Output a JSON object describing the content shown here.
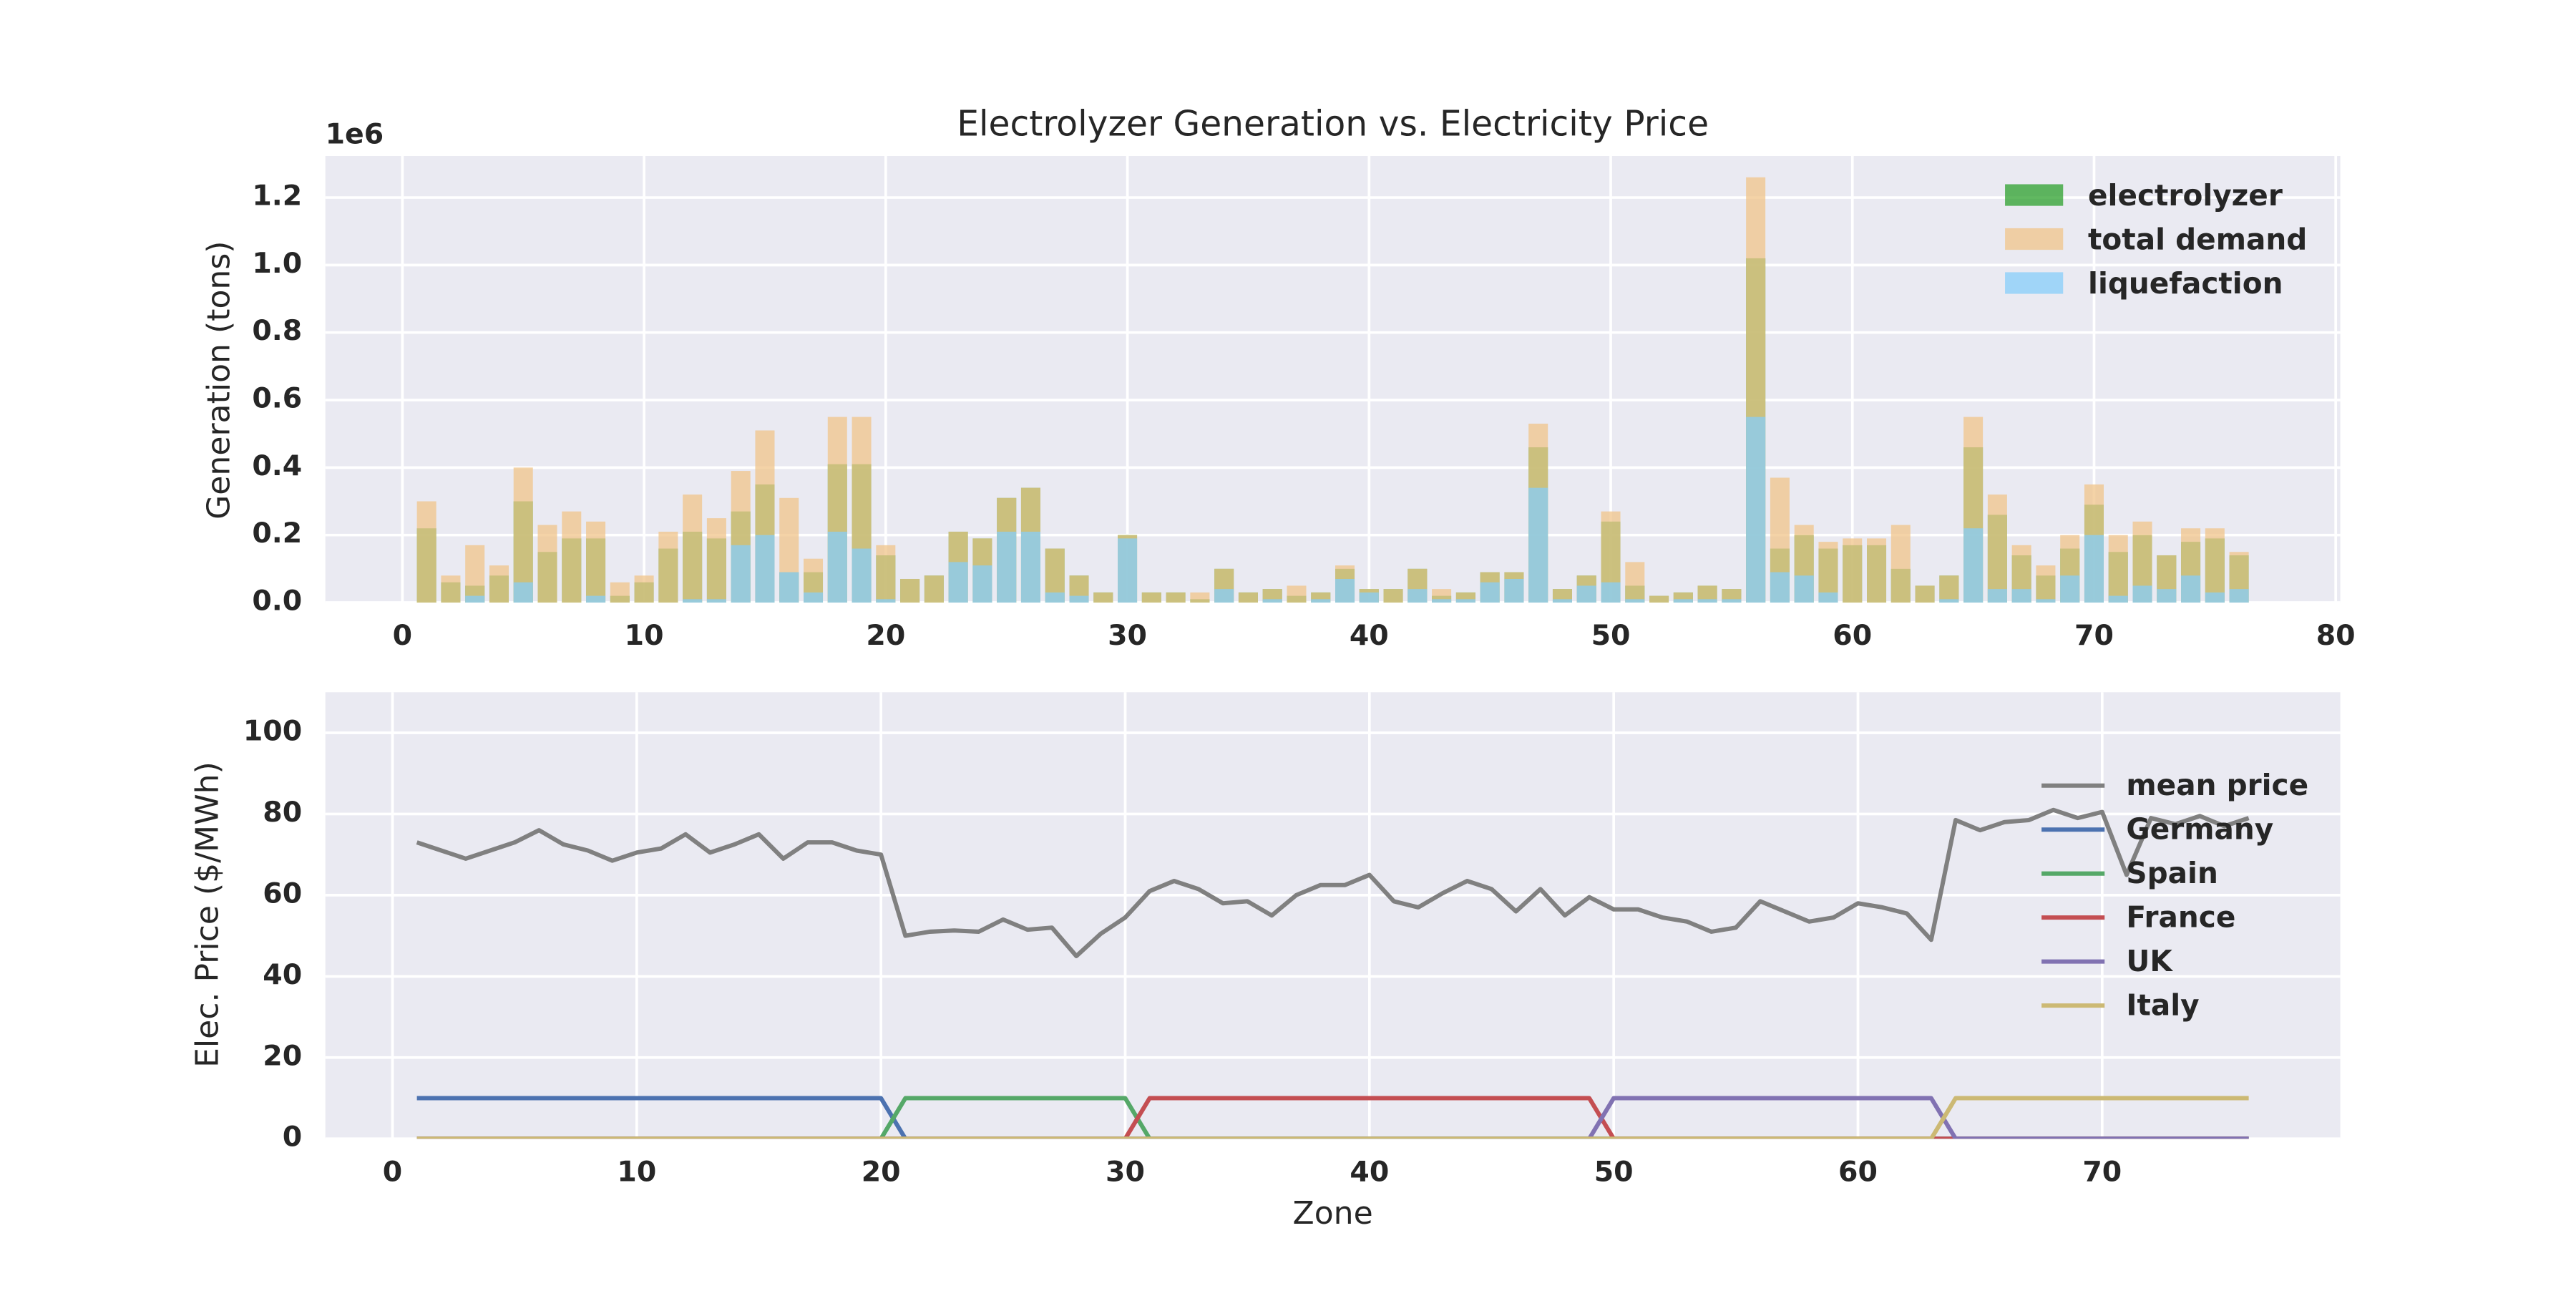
{
  "chart_data": [
    {
      "type": "bar",
      "title": "Electrolyzer Generation vs. Electricity Price",
      "ylabel": "Generation (tons)",
      "y_offset_label": "1e6",
      "x": [
        1,
        2,
        3,
        4,
        5,
        6,
        7,
        8,
        9,
        10,
        11,
        12,
        13,
        14,
        15,
        16,
        17,
        18,
        19,
        20,
        21,
        22,
        23,
        24,
        25,
        26,
        27,
        28,
        29,
        30,
        31,
        32,
        33,
        34,
        35,
        36,
        37,
        38,
        39,
        40,
        41,
        42,
        43,
        44,
        45,
        46,
        47,
        48,
        49,
        50,
        51,
        52,
        53,
        54,
        55,
        56,
        57,
        58,
        59,
        60,
        61,
        62,
        63,
        64,
        65,
        66,
        67,
        68,
        69,
        70,
        71,
        72,
        73,
        74,
        75,
        76
      ],
      "series": [
        {
          "name": "electrolyzer",
          "color": "#2ca02c",
          "values": [
            220000,
            60000,
            50000,
            80000,
            300000,
            150000,
            190000,
            190000,
            20000,
            60000,
            160000,
            210000,
            190000,
            270000,
            350000,
            90000,
            90000,
            410000,
            410000,
            140000,
            70000,
            80000,
            210000,
            190000,
            310000,
            340000,
            160000,
            80000,
            30000,
            200000,
            30000,
            30000,
            10000,
            100000,
            30000,
            40000,
            20000,
            30000,
            100000,
            40000,
            40000,
            100000,
            20000,
            30000,
            90000,
            90000,
            460000,
            40000,
            80000,
            240000,
            50000,
            20000,
            30000,
            50000,
            40000,
            1020000,
            160000,
            200000,
            160000,
            170000,
            170000,
            100000,
            50000,
            80000,
            460000,
            260000,
            140000,
            80000,
            160000,
            290000,
            150000,
            200000,
            140000,
            180000,
            190000,
            140000
          ]
        },
        {
          "name": "total demand",
          "color": "#f0c48a",
          "values": [
            300000,
            80000,
            170000,
            110000,
            400000,
            230000,
            270000,
            240000,
            60000,
            80000,
            210000,
            320000,
            250000,
            390000,
            510000,
            310000,
            130000,
            550000,
            550000,
            170000,
            70000,
            80000,
            210000,
            190000,
            310000,
            340000,
            160000,
            80000,
            30000,
            200000,
            30000,
            30000,
            30000,
            100000,
            30000,
            40000,
            50000,
            30000,
            110000,
            40000,
            40000,
            100000,
            40000,
            30000,
            90000,
            90000,
            530000,
            40000,
            80000,
            270000,
            120000,
            20000,
            30000,
            50000,
            40000,
            1260000,
            370000,
            230000,
            180000,
            190000,
            190000,
            230000,
            50000,
            80000,
            550000,
            320000,
            170000,
            110000,
            200000,
            350000,
            200000,
            240000,
            140000,
            220000,
            220000,
            150000
          ]
        },
        {
          "name": "liquefaction",
          "color": "#87cefa",
          "values": [
            0,
            0,
            20000,
            0,
            60000,
            0,
            0,
            20000,
            0,
            0,
            0,
            10000,
            10000,
            170000,
            200000,
            90000,
            30000,
            210000,
            160000,
            10000,
            0,
            0,
            120000,
            110000,
            210000,
            210000,
            30000,
            20000,
            0,
            190000,
            0,
            0,
            0,
            40000,
            0,
            10000,
            0,
            10000,
            70000,
            30000,
            0,
            40000,
            10000,
            10000,
            60000,
            70000,
            340000,
            10000,
            50000,
            60000,
            10000,
            0,
            10000,
            10000,
            10000,
            550000,
            90000,
            80000,
            30000,
            0,
            0,
            0,
            0,
            10000,
            220000,
            40000,
            40000,
            10000,
            80000,
            200000,
            20000,
            50000,
            40000,
            80000,
            30000,
            40000
          ]
        }
      ],
      "xlim": [
        -3.19,
        80.19
      ],
      "xticks": [
        0,
        10,
        20,
        30,
        40,
        50,
        60,
        70,
        80
      ],
      "ylim": [
        0,
        1323000
      ],
      "yticks": [
        {
          "value": 0,
          "label": "0.0"
        },
        {
          "value": 200000,
          "label": "0.2"
        },
        {
          "value": 400000,
          "label": "0.4"
        },
        {
          "value": 600000,
          "label": "0.6"
        },
        {
          "value": 800000,
          "label": "0.8"
        },
        {
          "value": 1000000,
          "label": "1.0"
        },
        {
          "value": 1200000,
          "label": "1.2"
        }
      ],
      "grid": true,
      "legend": "upper right"
    },
    {
      "type": "line",
      "ylabel": "Elec. Price ($/MWh)",
      "xlabel": "Zone",
      "x": [
        1,
        2,
        3,
        4,
        5,
        6,
        7,
        8,
        9,
        10,
        11,
        12,
        13,
        14,
        15,
        16,
        17,
        18,
        19,
        20,
        21,
        22,
        23,
        24,
        25,
        26,
        27,
        28,
        29,
        30,
        31,
        32,
        33,
        34,
        35,
        36,
        37,
        38,
        39,
        40,
        41,
        42,
        43,
        44,
        45,
        46,
        47,
        48,
        49,
        50,
        51,
        52,
        53,
        54,
        55,
        56,
        57,
        58,
        59,
        60,
        61,
        62,
        63,
        64,
        65,
        66,
        67,
        68,
        69,
        70,
        71,
        72,
        73,
        74,
        75,
        76
      ],
      "series": [
        {
          "name": "mean price",
          "color": "#808080",
          "values": [
            73,
            71,
            69,
            71,
            73,
            76,
            72.5,
            71,
            68.5,
            70.5,
            71.5,
            75,
            70.5,
            72.5,
            75,
            69,
            73,
            73,
            71,
            70,
            50,
            51,
            51.3,
            51,
            54,
            51.5,
            52,
            45,
            50.5,
            54.5,
            61,
            63.5,
            61.5,
            58,
            58.5,
            55,
            60,
            62.5,
            62.5,
            65,
            58.5,
            57,
            60.5,
            63.5,
            61.5,
            56,
            61.5,
            55,
            59.5,
            56.5,
            56.5,
            54.5,
            53.5,
            51,
            52,
            58.5,
            56,
            53.5,
            54.5,
            58,
            57,
            55.5,
            49,
            78.5,
            76,
            78,
            78.5,
            81,
            79,
            80.5,
            65,
            79,
            77.5,
            79.5,
            77,
            79
          ]
        },
        {
          "name": "Germany",
          "color": "#4c72b0",
          "values": [
            10,
            10,
            10,
            10,
            10,
            10,
            10,
            10,
            10,
            10,
            10,
            10,
            10,
            10,
            10,
            10,
            10,
            10,
            10,
            10,
            0,
            0,
            0,
            0,
            0,
            0,
            0,
            0,
            0,
            0,
            0,
            0,
            0,
            0,
            0,
            0,
            0,
            0,
            0,
            0,
            0,
            0,
            0,
            0,
            0,
            0,
            0,
            0,
            0,
            0,
            0,
            0,
            0,
            0,
            0,
            0,
            0,
            0,
            0,
            0,
            0,
            0,
            0,
            0,
            0,
            0,
            0,
            0,
            0,
            0,
            0,
            0,
            0,
            0,
            0,
            0
          ]
        },
        {
          "name": "Spain",
          "color": "#55a868",
          "values": [
            0,
            0,
            0,
            0,
            0,
            0,
            0,
            0,
            0,
            0,
            0,
            0,
            0,
            0,
            0,
            0,
            0,
            0,
            0,
            0,
            10,
            10,
            10,
            10,
            10,
            10,
            10,
            10,
            10,
            10,
            0,
            0,
            0,
            0,
            0,
            0,
            0,
            0,
            0,
            0,
            0,
            0,
            0,
            0,
            0,
            0,
            0,
            0,
            0,
            0,
            0,
            0,
            0,
            0,
            0,
            0,
            0,
            0,
            0,
            0,
            0,
            0,
            0,
            0,
            0,
            0,
            0,
            0,
            0,
            0,
            0,
            0,
            0,
            0,
            0,
            0
          ]
        },
        {
          "name": "France",
          "color": "#c44e52",
          "values": [
            0,
            0,
            0,
            0,
            0,
            0,
            0,
            0,
            0,
            0,
            0,
            0,
            0,
            0,
            0,
            0,
            0,
            0,
            0,
            0,
            0,
            0,
            0,
            0,
            0,
            0,
            0,
            0,
            0,
            0,
            10,
            10,
            10,
            10,
            10,
            10,
            10,
            10,
            10,
            10,
            10,
            10,
            10,
            10,
            10,
            10,
            10,
            10,
            10,
            0,
            0,
            0,
            0,
            0,
            0,
            0,
            0,
            0,
            0,
            0,
            0,
            0,
            0,
            0,
            0,
            0,
            0,
            0,
            0,
            0,
            0,
            0,
            0,
            0,
            0,
            0
          ]
        },
        {
          "name": "UK",
          "color": "#8172b2",
          "values": [
            0,
            0,
            0,
            0,
            0,
            0,
            0,
            0,
            0,
            0,
            0,
            0,
            0,
            0,
            0,
            0,
            0,
            0,
            0,
            0,
            0,
            0,
            0,
            0,
            0,
            0,
            0,
            0,
            0,
            0,
            0,
            0,
            0,
            0,
            0,
            0,
            0,
            0,
            0,
            0,
            0,
            0,
            0,
            0,
            0,
            0,
            0,
            0,
            0,
            10,
            10,
            10,
            10,
            10,
            10,
            10,
            10,
            10,
            10,
            10,
            10,
            10,
            10,
            0,
            0,
            0,
            0,
            0,
            0,
            0,
            0,
            0,
            0,
            0,
            0,
            0
          ]
        },
        {
          "name": "Italy",
          "color": "#ccb974",
          "values": [
            0,
            0,
            0,
            0,
            0,
            0,
            0,
            0,
            0,
            0,
            0,
            0,
            0,
            0,
            0,
            0,
            0,
            0,
            0,
            0,
            0,
            0,
            0,
            0,
            0,
            0,
            0,
            0,
            0,
            0,
            0,
            0,
            0,
            0,
            0,
            0,
            0,
            0,
            0,
            0,
            0,
            0,
            0,
            0,
            0,
            0,
            0,
            0,
            0,
            0,
            0,
            0,
            0,
            0,
            0,
            0,
            0,
            0,
            0,
            0,
            0,
            0,
            0,
            10,
            10,
            10,
            10,
            10,
            10,
            10,
            10,
            10,
            10,
            10,
            10,
            10
          ]
        }
      ],
      "xlim": [
        -2.75,
        79.75
      ],
      "xticks": [
        0,
        10,
        20,
        30,
        40,
        50,
        60,
        70
      ],
      "ylim": [
        0,
        110
      ],
      "yticks": [
        0,
        20,
        40,
        60,
        80,
        100
      ],
      "grid": true,
      "legend": "center right"
    }
  ]
}
